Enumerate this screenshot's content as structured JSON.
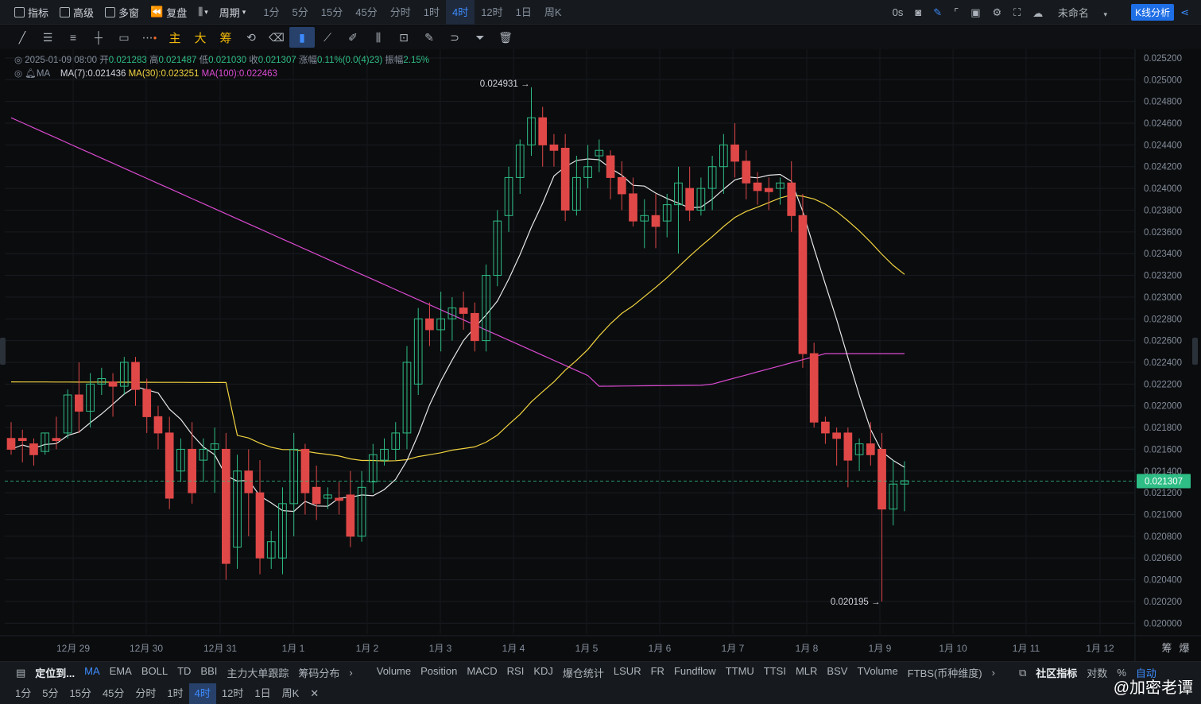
{
  "topbar": {
    "indicator": "指标",
    "advanced": "高级",
    "multiwin": "多窗",
    "replay": "复盘",
    "period": "周期",
    "timeframes": [
      "1分",
      "5分",
      "15分",
      "45分",
      "分时",
      "1时",
      "4时",
      "12时",
      "1日",
      "周K"
    ],
    "active_tf": "4时",
    "countdown": "0s",
    "layout_name": "未命名",
    "kline_btn": "K线分析"
  },
  "toolbar": {
    "main": "主",
    "big": "大",
    "chip": "筹"
  },
  "info": {
    "date": "2025-01-09 08:00",
    "open_label": "开",
    "open": "0.021283",
    "high_label": "高",
    "high": "0.021487",
    "low_label": "低",
    "low": "0.021030",
    "close_label": "收",
    "close": "0.021307",
    "chg_label": "涨幅",
    "chg": "0.11%(0.0(4)23)",
    "amp_label": "振幅",
    "amp": "2.15%",
    "ma_label": "MA",
    "ma7": "MA(7):0.021436",
    "ma30": "MA(30):0.023251",
    "ma100": "MA(100):0.022463"
  },
  "chart_data": {
    "type": "candlestick",
    "x_labels": [
      "12月 29",
      "12月 30",
      "12月 31",
      "1月 1",
      "1月 2",
      "1月 3",
      "1月 4",
      "1月 5",
      "1月 6",
      "1月 7",
      "1月 8",
      "1月 9",
      "1月 10",
      "1月 11",
      "1月 12"
    ],
    "y_ticks": [
      "0.025200",
      "0.025000",
      "0.024800",
      "0.024600",
      "0.024400",
      "0.024200",
      "0.024000",
      "0.023800",
      "0.023600",
      "0.023400",
      "0.023200",
      "0.023000",
      "0.022800",
      "0.022600",
      "0.022400",
      "0.022200",
      "0.022000",
      "0.021800",
      "0.021600",
      "0.021400",
      "0.021200",
      "0.021000",
      "0.020800",
      "0.020600",
      "0.020400",
      "0.020200",
      "0.020000"
    ],
    "ylim": [
      0.0199,
      0.02528
    ],
    "current_price": "0.021307",
    "high_marker": "0.024931",
    "low_marker": "0.020195",
    "candles": [
      [
        0.0217,
        0.02185,
        0.0216,
        0.02155
      ],
      [
        0.0217,
        0.02178,
        0.02168,
        0.02148
      ],
      [
        0.02165,
        0.0217,
        0.02155,
        0.02145
      ],
      [
        0.02158,
        0.02175,
        0.02175,
        0.02155
      ],
      [
        0.0217,
        0.0219,
        0.02168,
        0.0216
      ],
      [
        0.02175,
        0.02215,
        0.0221,
        0.0217
      ],
      [
        0.0221,
        0.0224,
        0.02195,
        0.02175
      ],
      [
        0.02195,
        0.0223,
        0.0222,
        0.0218
      ],
      [
        0.0222,
        0.02235,
        0.02225,
        0.0221
      ],
      [
        0.02222,
        0.0223,
        0.02218,
        0.0219
      ],
      [
        0.02218,
        0.02245,
        0.0224,
        0.0221
      ],
      [
        0.0224,
        0.02245,
        0.02215,
        0.022
      ],
      [
        0.02215,
        0.02225,
        0.0219,
        0.02175
      ],
      [
        0.0219,
        0.022,
        0.02175,
        0.0216
      ],
      [
        0.02175,
        0.0219,
        0.02115,
        0.02105
      ],
      [
        0.0214,
        0.0217,
        0.0216,
        0.0213
      ],
      [
        0.0216,
        0.02185,
        0.0212,
        0.0211
      ],
      [
        0.0215,
        0.0217,
        0.0216,
        0.0213
      ],
      [
        0.0216,
        0.0218,
        0.02165,
        0.0212
      ],
      [
        0.0216,
        0.02175,
        0.02055,
        0.0204
      ],
      [
        0.0207,
        0.02155,
        0.0214,
        0.0205
      ],
      [
        0.0214,
        0.0216,
        0.0212,
        0.0208
      ],
      [
        0.0212,
        0.0215,
        0.0206,
        0.02045
      ],
      [
        0.0206,
        0.02085,
        0.02075,
        0.0205
      ],
      [
        0.0206,
        0.02125,
        0.0211,
        0.02045
      ],
      [
        0.0211,
        0.02175,
        0.0216,
        0.0208
      ],
      [
        0.0216,
        0.02165,
        0.0212,
        0.021
      ],
      [
        0.02125,
        0.02145,
        0.0211,
        0.02095
      ],
      [
        0.02115,
        0.02125,
        0.02118,
        0.02105
      ],
      [
        0.02115,
        0.0213,
        0.02113,
        0.021
      ],
      [
        0.02118,
        0.0214,
        0.0208,
        0.0207
      ],
      [
        0.0208,
        0.0214,
        0.02125,
        0.02075
      ],
      [
        0.0213,
        0.02165,
        0.02155,
        0.0212
      ],
      [
        0.0215,
        0.0217,
        0.0216,
        0.02145
      ],
      [
        0.0216,
        0.02185,
        0.02175,
        0.0215
      ],
      [
        0.02175,
        0.02255,
        0.0224,
        0.0216
      ],
      [
        0.0222,
        0.0229,
        0.0228,
        0.0221
      ],
      [
        0.0228,
        0.02295,
        0.0227,
        0.02255
      ],
      [
        0.0227,
        0.02305,
        0.0228,
        0.0225
      ],
      [
        0.0228,
        0.023,
        0.0229,
        0.0226
      ],
      [
        0.0229,
        0.02305,
        0.02285,
        0.0227
      ],
      [
        0.02285,
        0.02295,
        0.0226,
        0.0225
      ],
      [
        0.0226,
        0.0233,
        0.0232,
        0.0225
      ],
      [
        0.0232,
        0.0238,
        0.0237,
        0.0231
      ],
      [
        0.02375,
        0.0242,
        0.0241,
        0.0236
      ],
      [
        0.0241,
        0.02445,
        0.0244,
        0.02395
      ],
      [
        0.0244,
        0.02493,
        0.02465,
        0.0243
      ],
      [
        0.02465,
        0.02475,
        0.0244,
        0.0242
      ],
      [
        0.0244,
        0.0245,
        0.02435,
        0.0242
      ],
      [
        0.02437,
        0.0245,
        0.0238,
        0.0237
      ],
      [
        0.0238,
        0.0243,
        0.0241,
        0.02375
      ],
      [
        0.0241,
        0.0244,
        0.0242,
        0.024
      ],
      [
        0.0243,
        0.02445,
        0.02435,
        0.02415
      ],
      [
        0.0243,
        0.02435,
        0.0241,
        0.0239
      ],
      [
        0.0241,
        0.02425,
        0.02395,
        0.0238
      ],
      [
        0.02395,
        0.0241,
        0.0237,
        0.02365
      ],
      [
        0.0237,
        0.0239,
        0.02375,
        0.02345
      ],
      [
        0.02375,
        0.02395,
        0.02365,
        0.02345
      ],
      [
        0.0237,
        0.02395,
        0.02385,
        0.02355
      ],
      [
        0.02385,
        0.0242,
        0.02405,
        0.0234
      ],
      [
        0.024,
        0.0242,
        0.0238,
        0.0237
      ],
      [
        0.0238,
        0.0241,
        0.024,
        0.02375
      ],
      [
        0.024,
        0.0243,
        0.0242,
        0.0238
      ],
      [
        0.0242,
        0.0245,
        0.0244,
        0.02395
      ],
      [
        0.0244,
        0.0246,
        0.02425,
        0.0241
      ],
      [
        0.02425,
        0.02435,
        0.02405,
        0.0239
      ],
      [
        0.02405,
        0.02415,
        0.02398,
        0.02385
      ],
      [
        0.024,
        0.0241,
        0.02397,
        0.0238
      ],
      [
        0.024,
        0.0241,
        0.02405,
        0.02385
      ],
      [
        0.02405,
        0.02425,
        0.02375,
        0.0236
      ],
      [
        0.02375,
        0.02395,
        0.02248,
        0.02235
      ],
      [
        0.02248,
        0.02258,
        0.02185,
        0.0218
      ],
      [
        0.02185,
        0.0219,
        0.02175,
        0.02165
      ],
      [
        0.02175,
        0.0218,
        0.0217,
        0.02145
      ],
      [
        0.02175,
        0.0218,
        0.0215,
        0.02125
      ],
      [
        0.02155,
        0.0217,
        0.02165,
        0.0214
      ],
      [
        0.02165,
        0.02185,
        0.02155,
        0.02145
      ],
      [
        0.0216,
        0.02175,
        0.02105,
        0.0202
      ],
      [
        0.02105,
        0.0215,
        0.02128,
        0.0209
      ],
      [
        0.02128,
        0.02149,
        0.02131,
        0.02103
      ]
    ]
  },
  "bottombar1": {
    "locate": "定位到...",
    "indicators": [
      "MA",
      "EMA",
      "BOLL",
      "TD",
      "BBI",
      "主力大单跟踪",
      "筹码分布"
    ],
    "sub_indicators": [
      "Volume",
      "Position",
      "MACD",
      "RSI",
      "KDJ",
      "爆仓统计",
      "LSUR",
      "FR",
      "Fundflow",
      "TTMU",
      "TTSI",
      "MLR",
      "BSV",
      "TVolume",
      "FTBS(币种维度)"
    ],
    "community": "社区指标",
    "log": "对数",
    "pct": "%",
    "auto": "自动"
  },
  "bottombar2": {
    "timeframes": [
      "1分",
      "5分",
      "15分",
      "45分",
      "分时",
      "1时",
      "4时",
      "12时",
      "1日",
      "周K"
    ],
    "active_tf": "4时"
  },
  "axis_right": {
    "chip": "筹",
    "expand": "爆"
  },
  "watermark": "@加密老谭",
  "colors": {
    "up": "#2ebd85",
    "down": "#e04848",
    "ma7": "#e8e8e8",
    "ma30": "#f0d340",
    "ma100": "#d94ad0",
    "accent": "#3d8bfd"
  }
}
